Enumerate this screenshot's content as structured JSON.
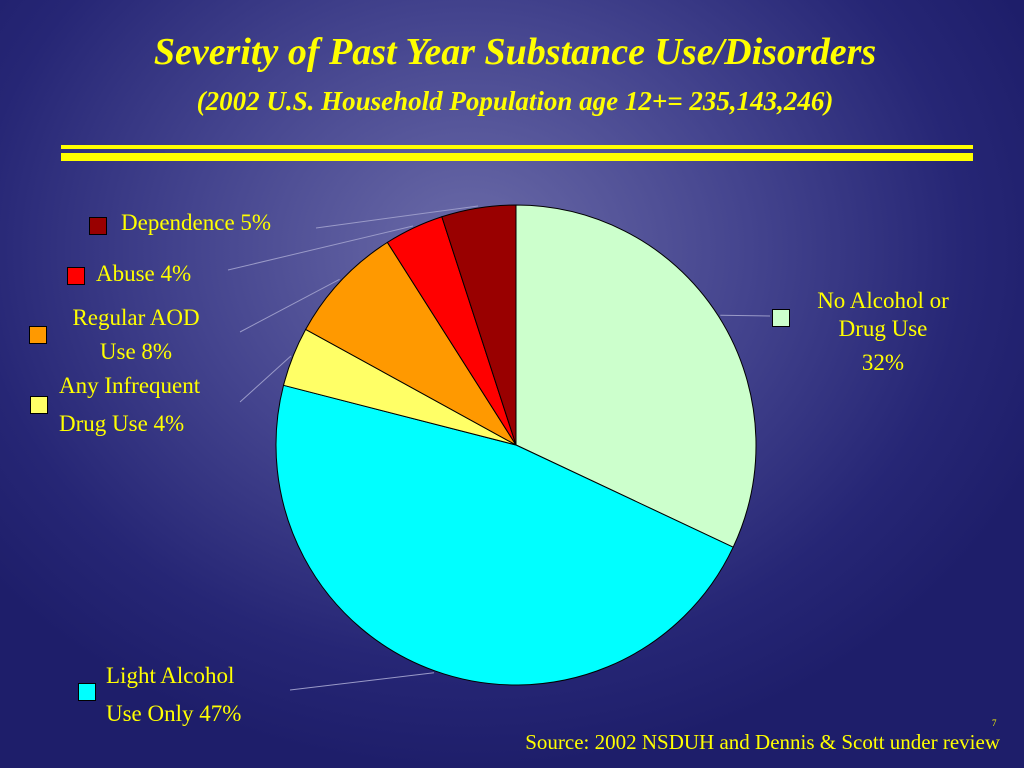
{
  "chart_data": {
    "type": "pie",
    "title": "Severity of Past Year Substance Use/Disorders",
    "subtitle": "(2002 U.S. Household Population age 12+= 235,143,246)",
    "slices": [
      {
        "label_lines": [
          "No Alcohol or",
          "Drug Use",
          "32%"
        ],
        "value": 32,
        "color": "#ccffcc"
      },
      {
        "label_lines": [
          "Light Alcohol",
          "Use Only 47%"
        ],
        "value": 47,
        "color": "#00ffff"
      },
      {
        "label_lines": [
          "Any Infrequent",
          "Drug Use 4%"
        ],
        "value": 4,
        "color": "#ffff66"
      },
      {
        "label_lines": [
          "Regular AOD",
          "Use 8%"
        ],
        "value": 8,
        "color": "#ff9900"
      },
      {
        "label_lines": [
          "Abuse 4%"
        ],
        "value": 4,
        "color": "#ff0000"
      },
      {
        "label_lines": [
          "Dependence 5%"
        ],
        "value": 5,
        "color": "#990000"
      }
    ],
    "start": "12 o'clock",
    "direction": "clockwise",
    "legend": "labels beside slices"
  },
  "source": "Source: 2002 NSDUH and Dennis & Scott under review",
  "page_number": "7"
}
